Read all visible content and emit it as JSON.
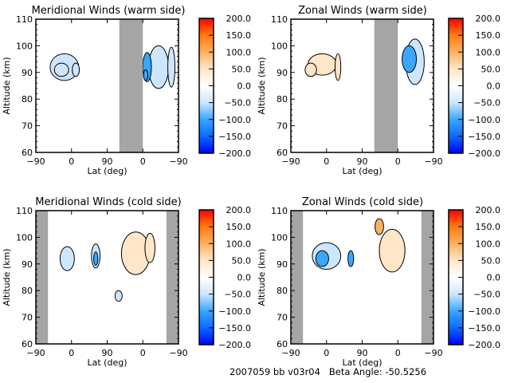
{
  "footer": {
    "label": "2007059 bb v03r04   Beta Angle: -50.5256"
  },
  "colorbar": {
    "range": [
      -200,
      200
    ],
    "tick_labels": [
      "200.0",
      "150.0",
      "100.0",
      "50.0",
      "0.0",
      "-50.0",
      "-100.0",
      "-150.0",
      "-200.0"
    ],
    "colors": [
      "#0000ff",
      "#0a6bff",
      "#3aa6ff",
      "#cde6ff",
      "#ffffff",
      "#ffe6c8",
      "#ffb060",
      "#ff7a10",
      "#ff0000"
    ]
  },
  "chart_data": [
    {
      "type": "heatmap",
      "title": "Meridional Winds (warm side)",
      "xlabel": "Lat (deg)",
      "ylabel": "Altitude (km)",
      "ylim": [
        60,
        110
      ],
      "x_tick_labels": [
        "-90",
        "0",
        "90",
        "0",
        "-90"
      ],
      "y_tick_labels": [
        "60",
        "70",
        "80",
        "90",
        "100",
        "110"
      ],
      "gray_band": [
        0.585,
        0.75
      ],
      "blobs": [
        {
          "x": 0.2,
          "y": 92,
          "w": 0.2,
          "h": 10,
          "v": -40
        },
        {
          "x": 0.18,
          "y": 91,
          "w": 0.1,
          "h": 5,
          "v": -70
        },
        {
          "x": 0.28,
          "y": 91,
          "w": 0.05,
          "h": 5,
          "v": -70
        },
        {
          "x": 0.86,
          "y": 92,
          "w": 0.14,
          "h": 16,
          "v": -40
        },
        {
          "x": 0.78,
          "y": 92,
          "w": 0.06,
          "h": 11,
          "v": -80
        },
        {
          "x": 0.77,
          "y": 89,
          "w": 0.03,
          "h": 4,
          "v": -110
        },
        {
          "x": 0.95,
          "y": 92,
          "w": 0.05,
          "h": 15,
          "v": -50
        }
      ]
    },
    {
      "type": "heatmap",
      "title": "Zonal Winds (warm side)",
      "xlabel": "Lat (deg)",
      "ylabel": "Altitude (km)",
      "ylim": [
        60,
        110
      ],
      "x_tick_labels": [
        "-90",
        "0",
        "90",
        "0",
        "-90"
      ],
      "y_tick_labels": [
        "60",
        "70",
        "80",
        "90",
        "100",
        "110"
      ],
      "gray_band": [
        0.585,
        0.75
      ],
      "blobs": [
        {
          "x": 0.22,
          "y": 93,
          "w": 0.2,
          "h": 8,
          "v": 25
        },
        {
          "x": 0.14,
          "y": 91,
          "w": 0.08,
          "h": 5,
          "v": 60
        },
        {
          "x": 0.33,
          "y": 92,
          "w": 0.04,
          "h": 10,
          "v": 70
        },
        {
          "x": 0.87,
          "y": 94,
          "w": 0.13,
          "h": 17,
          "v": -70
        },
        {
          "x": 0.83,
          "y": 95,
          "w": 0.1,
          "h": 10,
          "v": -110
        }
      ]
    },
    {
      "type": "heatmap",
      "title": "Meridional Winds (cold side)",
      "xlabel": "Lat (deg)",
      "ylabel": "Altitude (km)",
      "ylim": [
        60,
        110
      ],
      "x_tick_labels": [
        "-90",
        "0",
        "90",
        "0",
        "-90"
      ],
      "y_tick_labels": [
        "60",
        "70",
        "80",
        "90",
        "100",
        "110"
      ],
      "gray_band_left": [
        0,
        0.085
      ],
      "gray_band_right": [
        0.915,
        1
      ],
      "blobs": [
        {
          "x": 0.22,
          "y": 92,
          "w": 0.1,
          "h": 9,
          "v": -30
        },
        {
          "x": 0.42,
          "y": 93,
          "w": 0.06,
          "h": 9,
          "v": -50
        },
        {
          "x": 0.42,
          "y": 92,
          "w": 0.03,
          "h": 5,
          "v": -100
        },
        {
          "x": 0.7,
          "y": 94,
          "w": 0.2,
          "h": 16,
          "v": 30
        },
        {
          "x": 0.8,
          "y": 96,
          "w": 0.07,
          "h": 11,
          "v": 60
        },
        {
          "x": 0.58,
          "y": 78,
          "w": 0.05,
          "h": 4,
          "v": -40
        }
      ]
    },
    {
      "type": "heatmap",
      "title": "Zonal Winds (cold side)",
      "xlabel": "Lat (deg)",
      "ylabel": "Altitude (km)",
      "ylim": [
        60,
        110
      ],
      "x_tick_labels": [
        "-90",
        "0",
        "90",
        "0",
        "-90"
      ],
      "y_tick_labels": [
        "60",
        "70",
        "80",
        "90",
        "100",
        "110"
      ],
      "gray_band_left": [
        0,
        0.085
      ],
      "gray_band_right": [
        0.915,
        1
      ],
      "blobs": [
        {
          "x": 0.25,
          "y": 93,
          "w": 0.2,
          "h": 10,
          "v": -40
        },
        {
          "x": 0.22,
          "y": 92,
          "w": 0.09,
          "h": 6,
          "v": -110
        },
        {
          "x": 0.42,
          "y": 92,
          "w": 0.04,
          "h": 6,
          "v": -100
        },
        {
          "x": 0.71,
          "y": 95,
          "w": 0.18,
          "h": 16,
          "v": 60
        },
        {
          "x": 0.62,
          "y": 104,
          "w": 0.06,
          "h": 6,
          "v": 120
        }
      ]
    }
  ]
}
